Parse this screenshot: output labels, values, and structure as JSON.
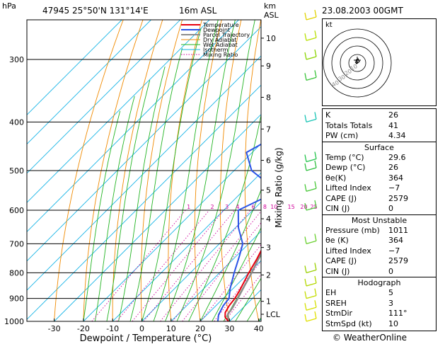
{
  "header": {
    "hpa_label": "hPa",
    "station": "47945  25°50'N  131°14'E",
    "elevation": "16m  ASL",
    "km_label": "km",
    "asl_label": "ASL",
    "datetime": "23.08.2003  00GMT",
    "footer_credit": "© WeatherOnline"
  },
  "chart_data": {
    "type": "line",
    "title": "",
    "xlabel": "Dewpoint / Temperature (°C)",
    "ylabel_right": "Mixing Ratio (g/kg)",
    "x_ticks": [
      -30,
      -20,
      -10,
      0,
      10,
      20,
      30,
      40
    ],
    "xlim": [
      -35,
      40
    ],
    "pressure_ticks": [
      300,
      400,
      500,
      600,
      700,
      800,
      900,
      1000
    ],
    "ylim_hpa": [
      1000,
      250
    ],
    "height_ticks": [
      {
        "label": "10",
        "p": 272
      },
      {
        "label": "9",
        "p": 309
      },
      {
        "label": "8",
        "p": 357
      },
      {
        "label": "7",
        "p": 413
      },
      {
        "label": "6",
        "p": 477
      },
      {
        "label": "5",
        "p": 547
      },
      {
        "label": "4",
        "p": 624
      },
      {
        "label": "3",
        "p": 712
      },
      {
        "label": "2",
        "p": 808
      },
      {
        "label": "1",
        "p": 912
      },
      {
        "label": "LCL",
        "p": 968
      }
    ],
    "mixing_ratio_labels": [
      "1",
      "2",
      "3",
      "4",
      "6",
      "8",
      "10",
      "15",
      "20",
      "25"
    ],
    "mixing_ratio_values": [
      1,
      2,
      3,
      4,
      6,
      8,
      10,
      15,
      20,
      25
    ],
    "legend": [
      "Temperature",
      "Dewpoint",
      "Parcel Trajectory",
      "Dry Adiabat",
      "Wet Adiabat",
      "Isotherm",
      "Mixing Ratio"
    ],
    "series": [
      {
        "name": "Temperature",
        "color": "#e8000f",
        "points": [
          [
            29.6,
            1000
          ],
          [
            27,
            980
          ],
          [
            25.5,
            960
          ],
          [
            24.5,
            930
          ],
          [
            24,
            900
          ],
          [
            23,
            870
          ],
          [
            20,
            800
          ],
          [
            18,
            750
          ],
          [
            15.5,
            700
          ],
          [
            12.5,
            650
          ],
          [
            9.5,
            600
          ],
          [
            7,
            560
          ],
          [
            5,
            520
          ],
          [
            2.5,
            480
          ],
          [
            -1,
            450
          ],
          [
            -5.5,
            420
          ],
          [
            -10,
            390
          ],
          [
            -14,
            360
          ],
          [
            -17,
            345
          ],
          [
            -21,
            330
          ],
          [
            -27,
            300
          ],
          [
            -33,
            280
          ],
          [
            -38,
            262
          ],
          [
            -43,
            250
          ]
        ]
      },
      {
        "name": "Dewpoint",
        "color": "#2a53e6",
        "points": [
          [
            26,
            1000
          ],
          [
            24,
            970
          ],
          [
            22.5,
            930
          ],
          [
            22,
            900
          ],
          [
            19,
            860
          ],
          [
            15,
            800
          ],
          [
            11,
            740
          ],
          [
            8,
            700
          ],
          [
            1,
            650
          ],
          [
            -5,
            600
          ],
          [
            2,
            550
          ],
          [
            -14,
            500
          ],
          [
            -22,
            460
          ],
          [
            -18,
            430
          ],
          [
            -10,
            400
          ],
          [
            -6,
            385
          ],
          [
            -13,
            370
          ],
          [
            -16,
            365
          ],
          [
            -12,
            350
          ],
          [
            -10,
            345
          ],
          [
            -13,
            335
          ],
          [
            -26,
            310
          ],
          [
            -31,
            300
          ],
          [
            -24,
            280
          ],
          [
            -17,
            270
          ],
          [
            -22,
            260
          ],
          [
            -27,
            250
          ]
        ]
      },
      {
        "name": "Parcel Trajectory",
        "color": "#8c8c8c",
        "points": [
          [
            29.6,
            1000
          ],
          [
            27,
            968
          ],
          [
            26.4,
            940
          ],
          [
            25,
            900
          ],
          [
            23,
            850
          ],
          [
            21,
            800
          ],
          [
            18.5,
            750
          ],
          [
            16,
            700
          ],
          [
            13,
            650
          ],
          [
            10,
            600
          ],
          [
            6.5,
            550
          ],
          [
            2.5,
            500
          ],
          [
            -2,
            450
          ],
          [
            -7.5,
            400
          ],
          [
            -14,
            350
          ],
          [
            -22,
            300
          ],
          [
            -31,
            260
          ]
        ]
      }
    ],
    "wind_barbs": [
      {
        "p": 250,
        "color": "#e0d200"
      },
      {
        "p": 275,
        "color": "#b8e000"
      },
      {
        "p": 300,
        "color": "#8ad400"
      },
      {
        "p": 330,
        "color": "#3bc43b"
      },
      {
        "p": 400,
        "color": "#17c4b4"
      },
      {
        "p": 480,
        "color": "#22c44a"
      },
      {
        "p": 500,
        "color": "#30c040"
      },
      {
        "p": 550,
        "color": "#48c838"
      },
      {
        "p": 600,
        "color": "#50c840"
      },
      {
        "p": 700,
        "color": "#6ad030"
      },
      {
        "p": 800,
        "color": "#9ad000"
      },
      {
        "p": 850,
        "color": "#b4d800"
      },
      {
        "p": 900,
        "color": "#c4dc00"
      },
      {
        "p": 950,
        "color": "#d4e000"
      },
      {
        "p": 1000,
        "color": "#e0e000"
      }
    ]
  },
  "hodograph": {
    "unit_label": "kt",
    "ring_labels": [
      "10",
      "20",
      "30",
      "40"
    ]
  },
  "indices": [
    {
      "k": "K",
      "v": "26"
    },
    {
      "k": "Totals Totals",
      "v": "41"
    },
    {
      "k": "PW (cm)",
      "v": "4.34"
    }
  ],
  "surface": {
    "title": "Surface",
    "rows": [
      {
        "k": "Temp (°C)",
        "v": "29.6"
      },
      {
        "k": "Dewp (°C)",
        "v": "26"
      },
      {
        "k": "θe(K)",
        "v": "364"
      },
      {
        "k": "Lifted Index",
        "v": "−7"
      },
      {
        "k": "CAPE (J)",
        "v": "2579"
      },
      {
        "k": "CIN (J)",
        "v": "0"
      }
    ]
  },
  "most_unstable": {
    "title": "Most Unstable",
    "rows": [
      {
        "k": "Pressure (mb)",
        "v": "1011"
      },
      {
        "k": "θe (K)",
        "v": "364"
      },
      {
        "k": "Lifted Index",
        "v": "−7"
      },
      {
        "k": "CAPE (J)",
        "v": "2579"
      },
      {
        "k": "CIN (J)",
        "v": "0"
      }
    ]
  },
  "hodograph_table": {
    "title": "Hodograph",
    "rows": [
      {
        "k": "EH",
        "v": "5"
      },
      {
        "k": "SREH",
        "v": "3"
      },
      {
        "k": "StmDir",
        "v": "111°"
      },
      {
        "k": "StmSpd (kt)",
        "v": "10"
      }
    ]
  }
}
